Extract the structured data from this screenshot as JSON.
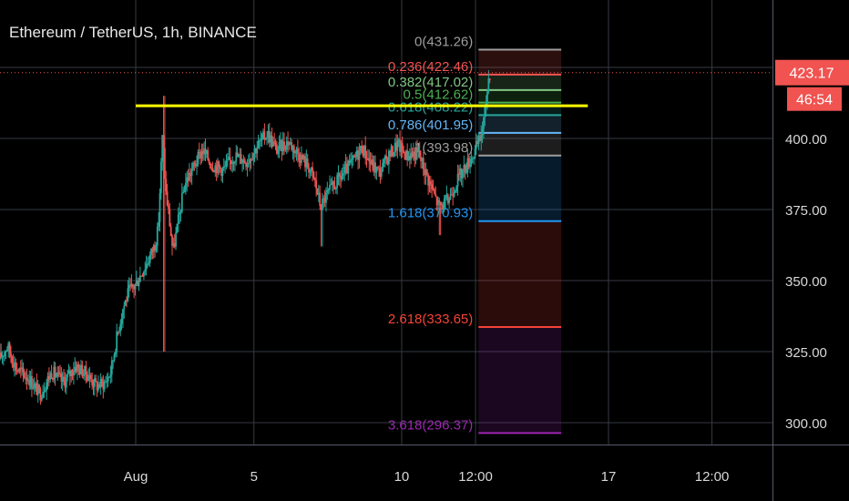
{
  "chart_data": {
    "type": "candlestick",
    "title": "Ethereum / TetherUS, 1h, BINANCE",
    "ylim": [
      290,
      440
    ],
    "y_ticks": [
      "300.00",
      "325.00",
      "350.00",
      "375.00",
      "400.00"
    ],
    "y_tick_values": [
      300,
      325,
      350,
      375,
      400
    ],
    "x_ticks": [
      {
        "label": "Aug",
        "day": 1
      },
      {
        "label": "5",
        "day": 5
      },
      {
        "label": "10",
        "day": 10
      },
      {
        "label": "12:00",
        "day": 12.5
      },
      {
        "label": "17",
        "day": 17
      },
      {
        "label": "12:00",
        "day": 20.5
      }
    ],
    "xlim_days": [
      -3.6,
      22.8
    ],
    "current_price": {
      "label": "423.17",
      "value": 423.17,
      "color": "#f05350"
    },
    "countdown": {
      "label": "46:54",
      "color": "#f05350"
    },
    "resistance_line": {
      "price": 411.5,
      "day_start": 1.0,
      "day_end": 16.3,
      "color": "#ffff00"
    },
    "fibonacci": {
      "day_start": 12.6,
      "day_end": 15.4,
      "levels": [
        {
          "label": "0(431.26)",
          "price": 431.26,
          "color": "#9e9e9e"
        },
        {
          "label": "0.236(422.46)",
          "price": 422.46,
          "color": "#f05350"
        },
        {
          "label": "0.382(417.02)",
          "price": 417.02,
          "color": "#81c784"
        },
        {
          "label": "0.5(412.62)",
          "price": 412.62,
          "color": "#4caf50"
        },
        {
          "label": "0.618(408.22)",
          "price": 408.22,
          "color": "#26a69a"
        },
        {
          "label": "0.786(401.95)",
          "price": 401.95,
          "color": "#64b5f6"
        },
        {
          "label": "1(393.98)",
          "price": 393.98,
          "color": "#9e9e9e"
        },
        {
          "label": "1.618(370.93)",
          "price": 370.93,
          "color": "#2196f3"
        },
        {
          "label": "2.618(333.65)",
          "price": 333.65,
          "color": "#f44336"
        },
        {
          "label": "3.618(296.37)",
          "price": 296.37,
          "color": "#9c27b0"
        }
      ]
    },
    "colors": {
      "up": "#26a69a",
      "down": "#ef5350",
      "grid": "#363a45",
      "axis_text": "#d8d8d8"
    },
    "price_path": [
      [
        -3.6,
        322
      ],
      [
        -3.3,
        327
      ],
      [
        -3.0,
        319
      ],
      [
        -2.6,
        316
      ],
      [
        -2.2,
        310
      ],
      [
        -1.8,
        318
      ],
      [
        -1.4,
        314
      ],
      [
        -1.0,
        320
      ],
      [
        -0.6,
        317
      ],
      [
        -0.3,
        313
      ],
      [
        0.0,
        314
      ],
      [
        0.2,
        318
      ],
      [
        0.4,
        330
      ],
      [
        0.6,
        340
      ],
      [
        0.8,
        346
      ],
      [
        1.0,
        348
      ],
      [
        1.2,
        352
      ],
      [
        1.5,
        358
      ],
      [
        1.7,
        363
      ],
      [
        1.8,
        368
      ],
      [
        1.95,
        402
      ],
      [
        2.05,
        382
      ],
      [
        2.15,
        374
      ],
      [
        2.3,
        360
      ],
      [
        2.5,
        372
      ],
      [
        2.7,
        384
      ],
      [
        3.0,
        390
      ],
      [
        3.3,
        396
      ],
      [
        3.6,
        391
      ],
      [
        4.0,
        389
      ],
      [
        4.4,
        394
      ],
      [
        4.8,
        392
      ],
      [
        5.2,
        398
      ],
      [
        5.5,
        402
      ],
      [
        5.8,
        396
      ],
      [
        6.2,
        399
      ],
      [
        6.6,
        394
      ],
      [
        6.9,
        390
      ],
      [
        7.1,
        385
      ],
      [
        7.3,
        376
      ],
      [
        7.5,
        380
      ],
      [
        7.8,
        384
      ],
      [
        8.1,
        388
      ],
      [
        8.4,
        392
      ],
      [
        8.7,
        397
      ],
      [
        9.0,
        391
      ],
      [
        9.3,
        388
      ],
      [
        9.6,
        394
      ],
      [
        9.9,
        398
      ],
      [
        10.2,
        394
      ],
      [
        10.6,
        395
      ],
      [
        11.0,
        384
      ],
      [
        11.3,
        376
      ],
      [
        11.6,
        378
      ],
      [
        11.9,
        385
      ],
      [
        12.2,
        390
      ],
      [
        12.5,
        395
      ],
      [
        12.7,
        400
      ],
      [
        12.85,
        408
      ],
      [
        13.0,
        423
      ]
    ]
  }
}
